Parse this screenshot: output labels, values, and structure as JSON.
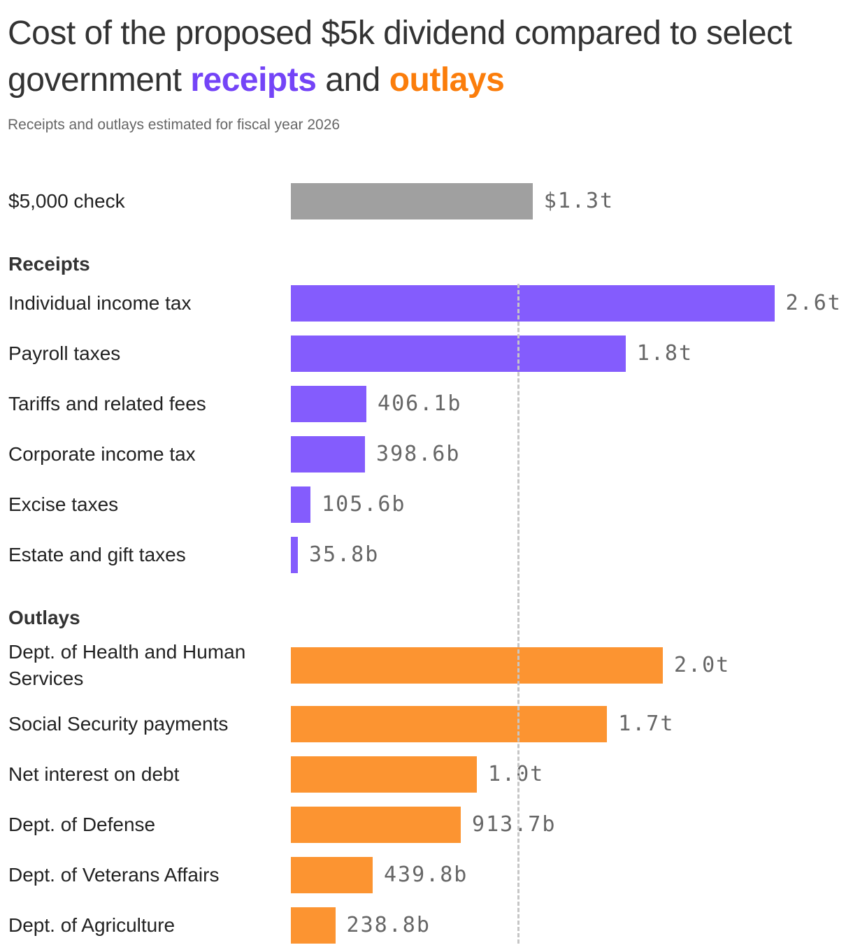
{
  "title_part1": "Cost of the proposed $5k dividend compared to select government",
  "title_receipts": "receipts",
  "title_and": "and",
  "title_outlays": "outlays",
  "subtitle": "Receipts and outlays estimated for fiscal year 2026",
  "colors": {
    "check": "#a0a0a0",
    "receipts": "#845cfd",
    "outlays": "#fc9431",
    "receipts_title": "#7444f7",
    "outlays_title": "#fb7d0b",
    "reference_line": "#c6c6c6"
  },
  "chart_data": {
    "type": "bar",
    "orientation": "horizontal",
    "units": "US dollars",
    "reference_line": {
      "value": 1300000000000,
      "style": "dashed"
    },
    "groups": [
      {
        "name": "",
        "color_key": "check",
        "items": [
          {
            "label": "$5,000 check",
            "value": 1300000000000,
            "display": "$1.3t"
          }
        ]
      },
      {
        "name": "Receipts",
        "color_key": "receipts",
        "items": [
          {
            "label": "Individual income tax",
            "value": 2600000000000,
            "display": "2.6t"
          },
          {
            "label": "Payroll taxes",
            "value": 1800000000000,
            "display": "1.8t"
          },
          {
            "label": "Tariffs and related fees",
            "value": 406100000000,
            "display": "406.1b"
          },
          {
            "label": "Corporate income tax",
            "value": 398600000000,
            "display": "398.6b"
          },
          {
            "label": "Excise taxes",
            "value": 105600000000,
            "display": "105.6b"
          },
          {
            "label": "Estate and gift taxes",
            "value": 35800000000,
            "display": "35.8b"
          }
        ]
      },
      {
        "name": "Outlays",
        "color_key": "outlays",
        "items": [
          {
            "label": "Dept. of Health and Human Services",
            "value": 2000000000000,
            "display": "2.0t"
          },
          {
            "label": "Social Security payments",
            "value": 1700000000000,
            "display": "1.7t"
          },
          {
            "label": "Net interest on debt",
            "value": 1000000000000,
            "display": "1.0t"
          },
          {
            "label": "Dept. of Defense",
            "value": 913700000000,
            "display": "913.7b"
          },
          {
            "label": "Dept. of Veterans Affairs",
            "value": 439800000000,
            "display": "439.8b"
          },
          {
            "label": "Dept. of Agriculture",
            "value": 238800000000,
            "display": "238.8b"
          }
        ]
      }
    ]
  }
}
